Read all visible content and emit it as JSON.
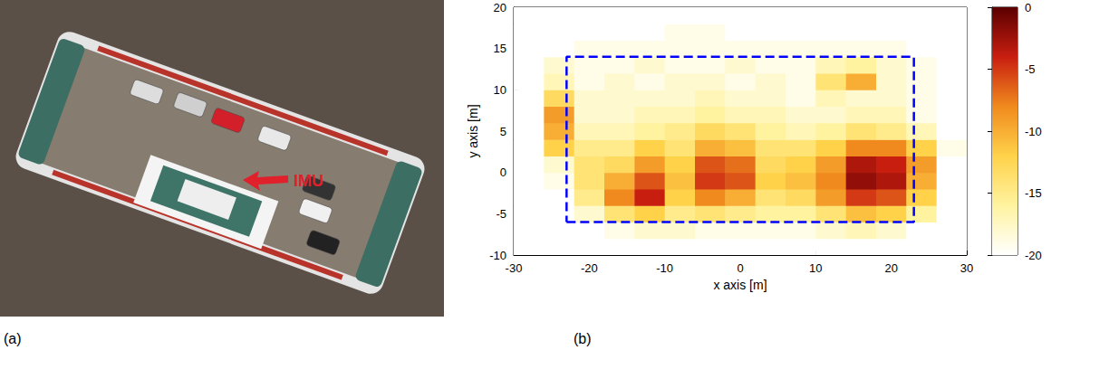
{
  "panel_labels": [
    "(a)",
    "(b)"
  ],
  "photo": {
    "annotation": "IMU"
  },
  "chart_data": {
    "type": "heatmap",
    "xlabel": "x axis [m]",
    "ylabel": "y axis [m]",
    "xlim": [
      -30,
      30
    ],
    "xticks": [
      -30,
      -20,
      -10,
      0,
      10,
      20,
      30
    ],
    "ylim": [
      -10,
      20
    ],
    "yticks": [
      -10,
      -5,
      0,
      5,
      10,
      15,
      20
    ],
    "grid": false,
    "cells": {
      "x": [
        -28,
        -24,
        -20,
        -16,
        -12,
        -8,
        -4,
        0,
        4,
        8,
        12,
        16,
        20,
        24,
        28
      ],
      "y": [
        -9,
        -7,
        -5,
        -3,
        -1,
        1,
        3,
        5,
        7,
        9,
        11,
        13,
        15,
        17,
        19
      ],
      "values": [
        [
          -20,
          -20,
          -20,
          -20,
          -20,
          -20,
          -20,
          -20,
          -20,
          -20,
          -20,
          -20,
          -20,
          -20,
          -20
        ],
        [
          -20,
          -20,
          -20,
          -19,
          -18,
          -18,
          -19,
          -19,
          -19,
          -19,
          -18,
          -17,
          -18,
          -20,
          -20
        ],
        [
          -20,
          -20,
          -18,
          -14,
          -12,
          -15,
          -14,
          -15,
          -16,
          -16,
          -14,
          -11,
          -12,
          -16,
          -20
        ],
        [
          -20,
          -20,
          -15,
          -8,
          -4,
          -12,
          -8,
          -10,
          -14,
          -13,
          -9,
          -5,
          -6,
          -12,
          -20
        ],
        [
          -20,
          -19,
          -14,
          -10,
          -6,
          -11,
          -5,
          -6,
          -12,
          -11,
          -8,
          -2,
          -3,
          -10,
          -20
        ],
        [
          -20,
          -18,
          -14,
          -13,
          -9,
          -12,
          -6,
          -7,
          -13,
          -12,
          -9,
          -3,
          -4,
          -9,
          -20
        ],
        [
          -20,
          -12,
          -15,
          -15,
          -12,
          -14,
          -10,
          -11,
          -14,
          -14,
          -12,
          -8,
          -8,
          -12,
          -19
        ],
        [
          -20,
          -10,
          -17,
          -17,
          -16,
          -15,
          -13,
          -14,
          -16,
          -17,
          -16,
          -14,
          -15,
          -17,
          -20
        ],
        [
          -20,
          -9,
          -18,
          -18,
          -17,
          -17,
          -16,
          -17,
          -17,
          -18,
          -18,
          -17,
          -17,
          -19,
          -20
        ],
        [
          -20,
          -13,
          -18,
          -18,
          -18,
          -18,
          -17,
          -18,
          -18,
          -19,
          -17,
          -18,
          -18,
          -19,
          -20
        ],
        [
          -20,
          -17,
          -19,
          -18,
          -19,
          -18,
          -18,
          -19,
          -18,
          -19,
          -14,
          -10,
          -18,
          -19,
          -20
        ],
        [
          -20,
          -18,
          -19,
          -19,
          -18,
          -19,
          -19,
          -18,
          -19,
          -19,
          -17,
          -16,
          -18,
          -19,
          -20
        ],
        [
          -20,
          -20,
          -19,
          -19,
          -19,
          -19,
          -19,
          -19,
          -19,
          -19,
          -19,
          -19,
          -19,
          -20,
          -20
        ],
        [
          -20,
          -20,
          -20,
          -20,
          -20,
          -19,
          -19,
          -20,
          -20,
          -20,
          -20,
          -20,
          -20,
          -20,
          -20
        ],
        [
          -20,
          -20,
          -20,
          -20,
          -20,
          -20,
          -20,
          -20,
          -20,
          -20,
          -20,
          -20,
          -20,
          -20,
          -20
        ]
      ]
    },
    "colorbar": {
      "lim": [
        -20,
        0
      ],
      "ticks": [
        0,
        -5,
        -10,
        -15,
        -20
      ]
    },
    "rectangle": {
      "x": [
        -23,
        23
      ],
      "y": [
        -6,
        14
      ],
      "color": "#0000ff",
      "line_style": "dashed"
    }
  }
}
